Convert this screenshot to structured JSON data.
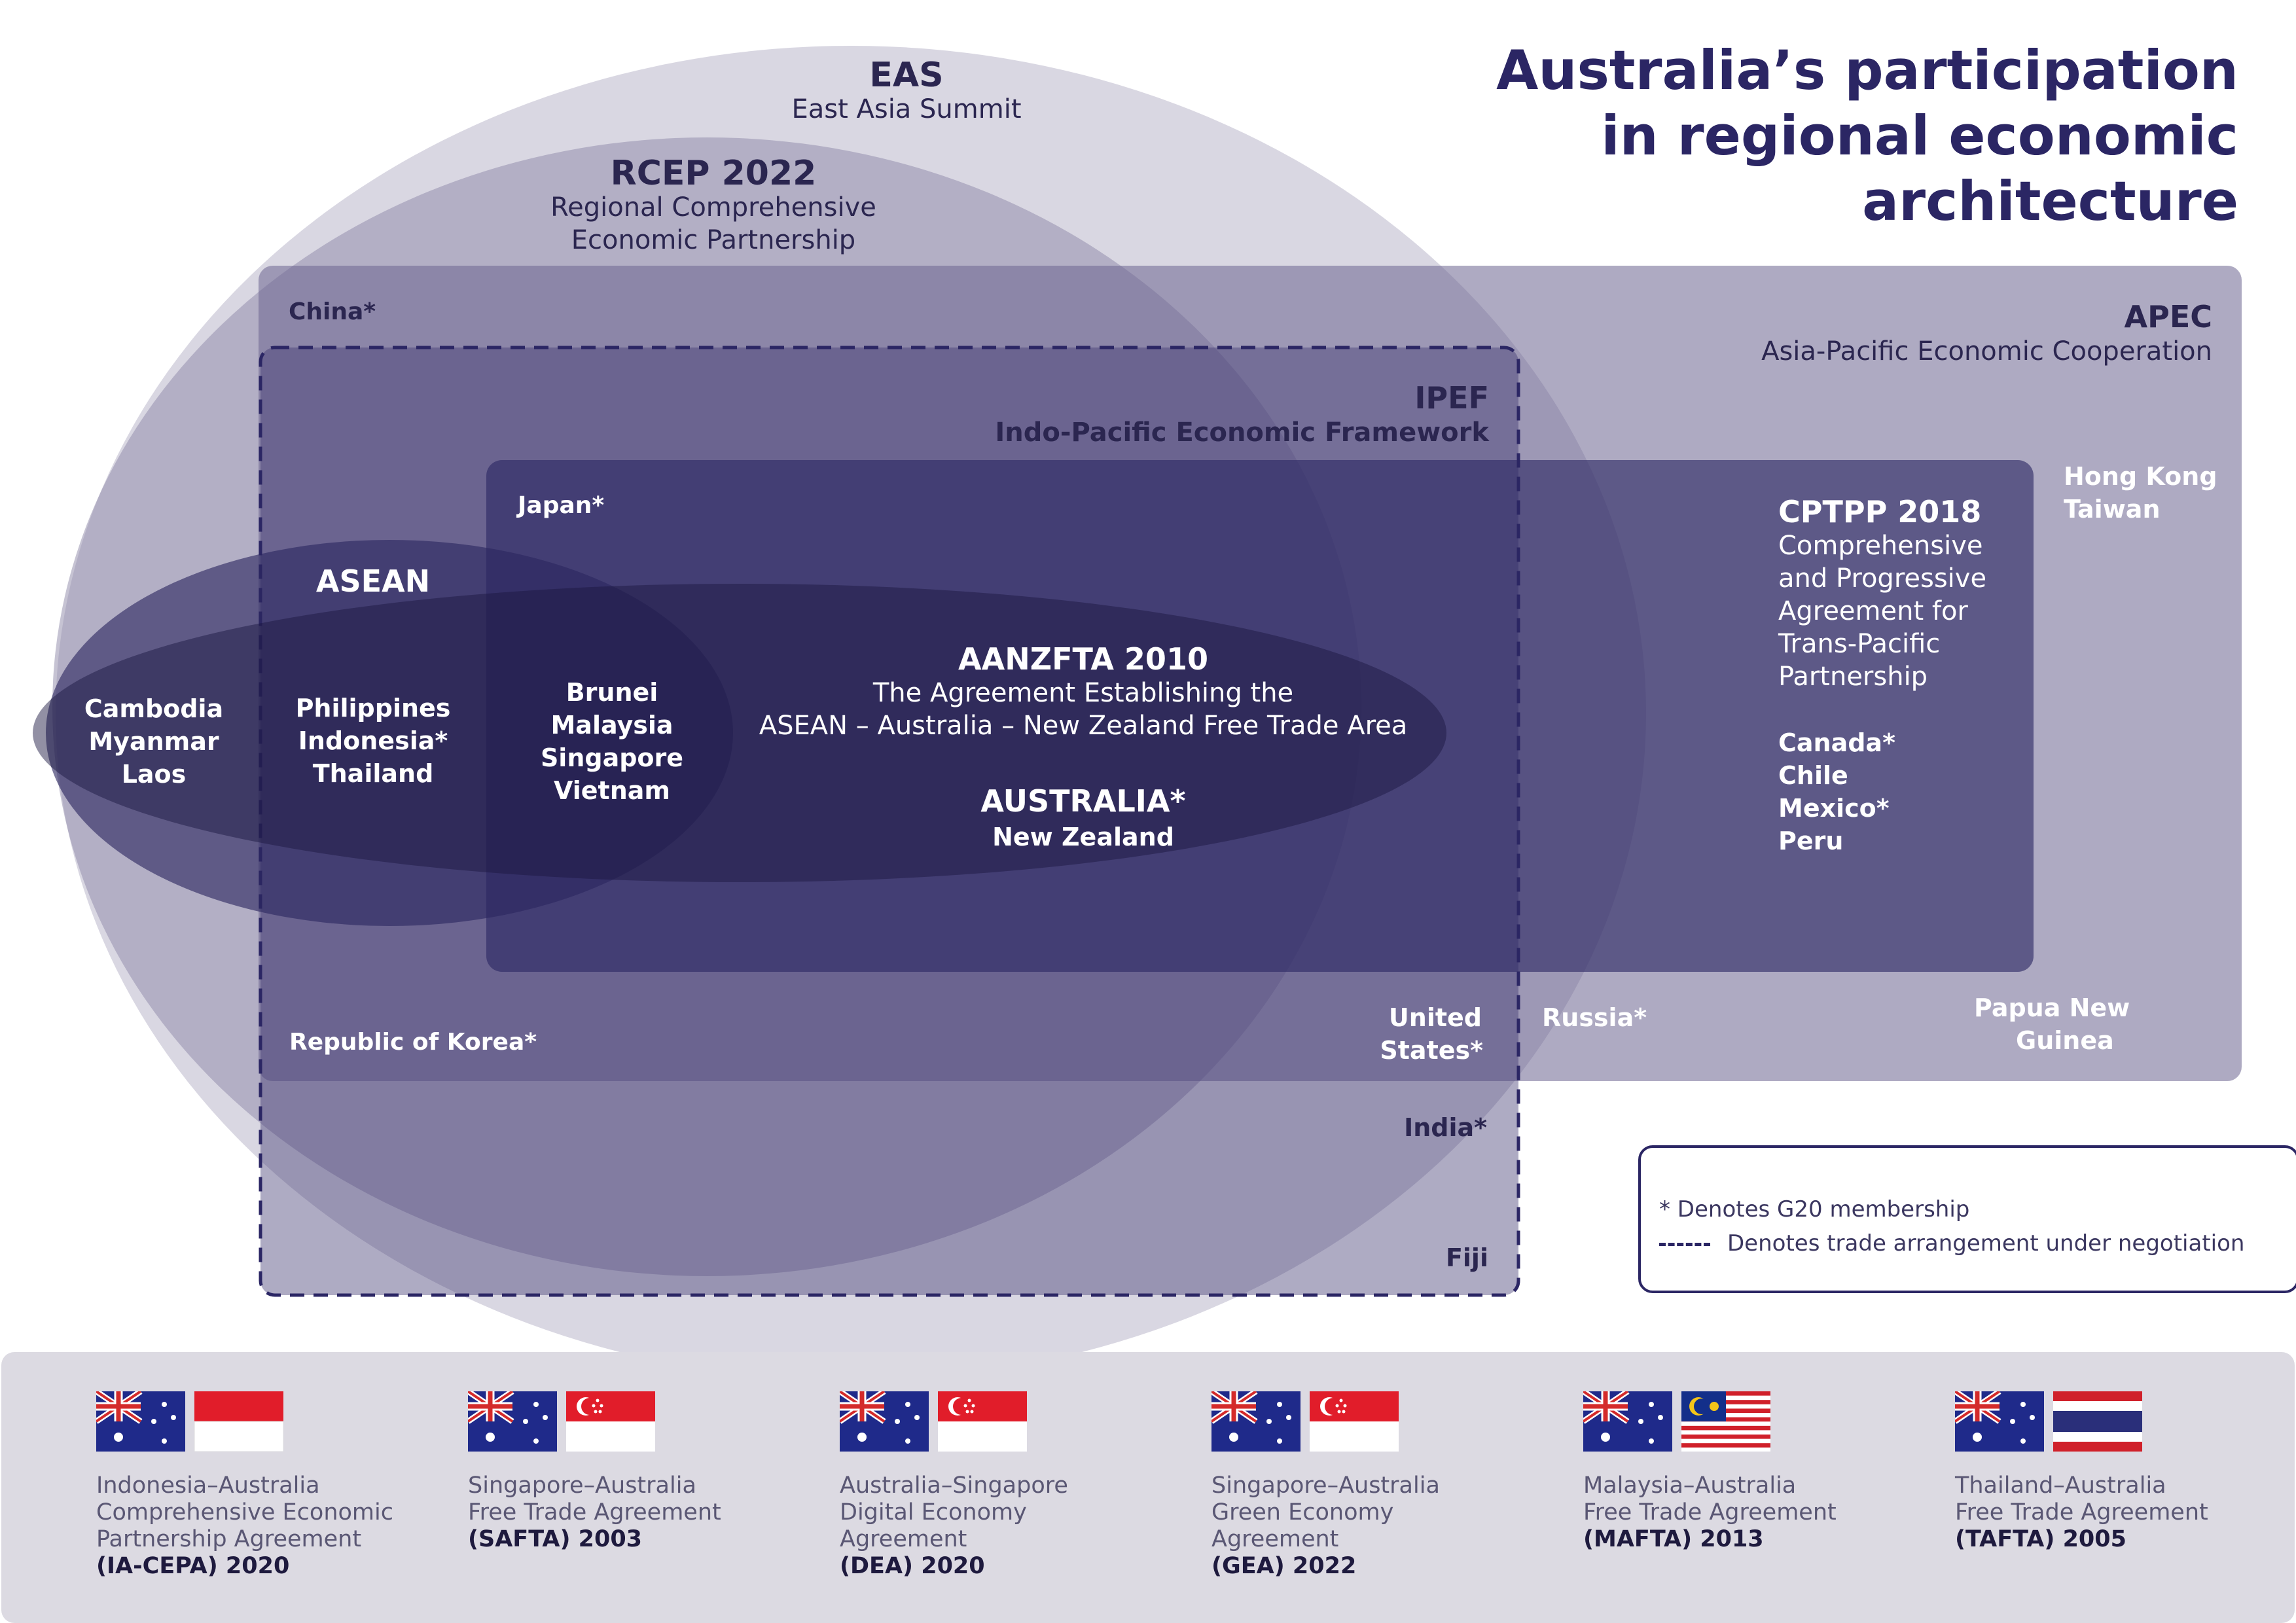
{
  "title": {
    "line1": "Australia’s participation",
    "line2": "in regional economic",
    "line3": "architecture"
  },
  "eas": {
    "name": "EAS",
    "full": "East Asia Summit"
  },
  "rcep": {
    "name": "RCEP 2022",
    "full1": "Regional Comprehensive",
    "full2": "Economic Partnership"
  },
  "apec": {
    "name": "APEC",
    "full": "Asia-Pacific Economic Cooperation"
  },
  "ipef": {
    "name": "IPEF",
    "full": "Indo-Pacific  Economic Framework"
  },
  "asean": {
    "name": "ASEAN"
  },
  "aanzfta": {
    "name": "AANZFTA 2010",
    "full1": "The Agreement Establishing the",
    "full2": "ASEAN – Australia – New Zealand Free Trade Area"
  },
  "cptpp": {
    "name": "CPTPP 2018",
    "full": [
      "Comprehensive",
      "and Progressive",
      "Agreement for",
      "Trans-Pacific",
      "Partnership"
    ]
  },
  "countries": {
    "china": "China*",
    "japan": "Japan*",
    "korea": "Republic of Korea*",
    "us1": "United",
    "us2": "States*",
    "india": "India*",
    "fiji": "Fiji",
    "russia": "Russia*",
    "png1": "Papua New",
    "png2": "Guinea",
    "hk": "Hong Kong",
    "taiwan": "Taiwan",
    "group1": [
      "Cambodia",
      "Myanmar",
      "Laos"
    ],
    "group2": [
      "Philippines",
      "Indonesia*",
      "Thailand"
    ],
    "group3": [
      "Brunei",
      "Malaysia",
      "Singapore",
      "Vietnam"
    ],
    "cptpp_members": [
      "Canada*",
      "Chile",
      "Mexico*",
      "Peru"
    ],
    "australia": "AUSTRALIA*",
    "nz": "New Zealand"
  },
  "legend": {
    "g20": "* Denotes G20 membership",
    "negotiation": "Denotes trade arrangement under negotiation"
  },
  "agreements": [
    {
      "partner_flag": "indonesia-flag",
      "lines": [
        "Indonesia–Australia",
        "Comprehensive Economic",
        "Partnership Agreement"
      ],
      "code": "(IA-CEPA) 2020"
    },
    {
      "partner_flag": "singapore-flag",
      "lines": [
        "Singapore–Australia",
        "Free Trade Agreement"
      ],
      "code": "(SAFTA) 2003"
    },
    {
      "partner_flag": "singapore-flag",
      "lines": [
        "Australia–Singapore",
        "Digital Economy",
        "Agreement"
      ],
      "code": "(DEA) 2020"
    },
    {
      "partner_flag": "singapore-flag",
      "lines": [
        "Singapore–Australia",
        "Green Economy",
        "Agreement"
      ],
      "code": "(GEA) 2022"
    },
    {
      "partner_flag": "malaysia-flag",
      "lines": [
        "Malaysia–Australia",
        "Free Trade Agreement"
      ],
      "code": "(MAFTA) 2013"
    },
    {
      "partner_flag": "thailand-flag",
      "lines": [
        "Thailand–Australia",
        "Free Trade Agreement"
      ],
      "code": "(TAFTA) 2005"
    }
  ],
  "colors": {
    "navy": "#2b2664",
    "eas_fill": "#d6d3df",
    "apec_fill": "#7d7799",
    "ipef_fill": "#3d3870",
    "cptpp_fill": "#332c66",
    "asean_fill": "#2a2558",
    "aanzfta_fill": "#1f1a44"
  }
}
